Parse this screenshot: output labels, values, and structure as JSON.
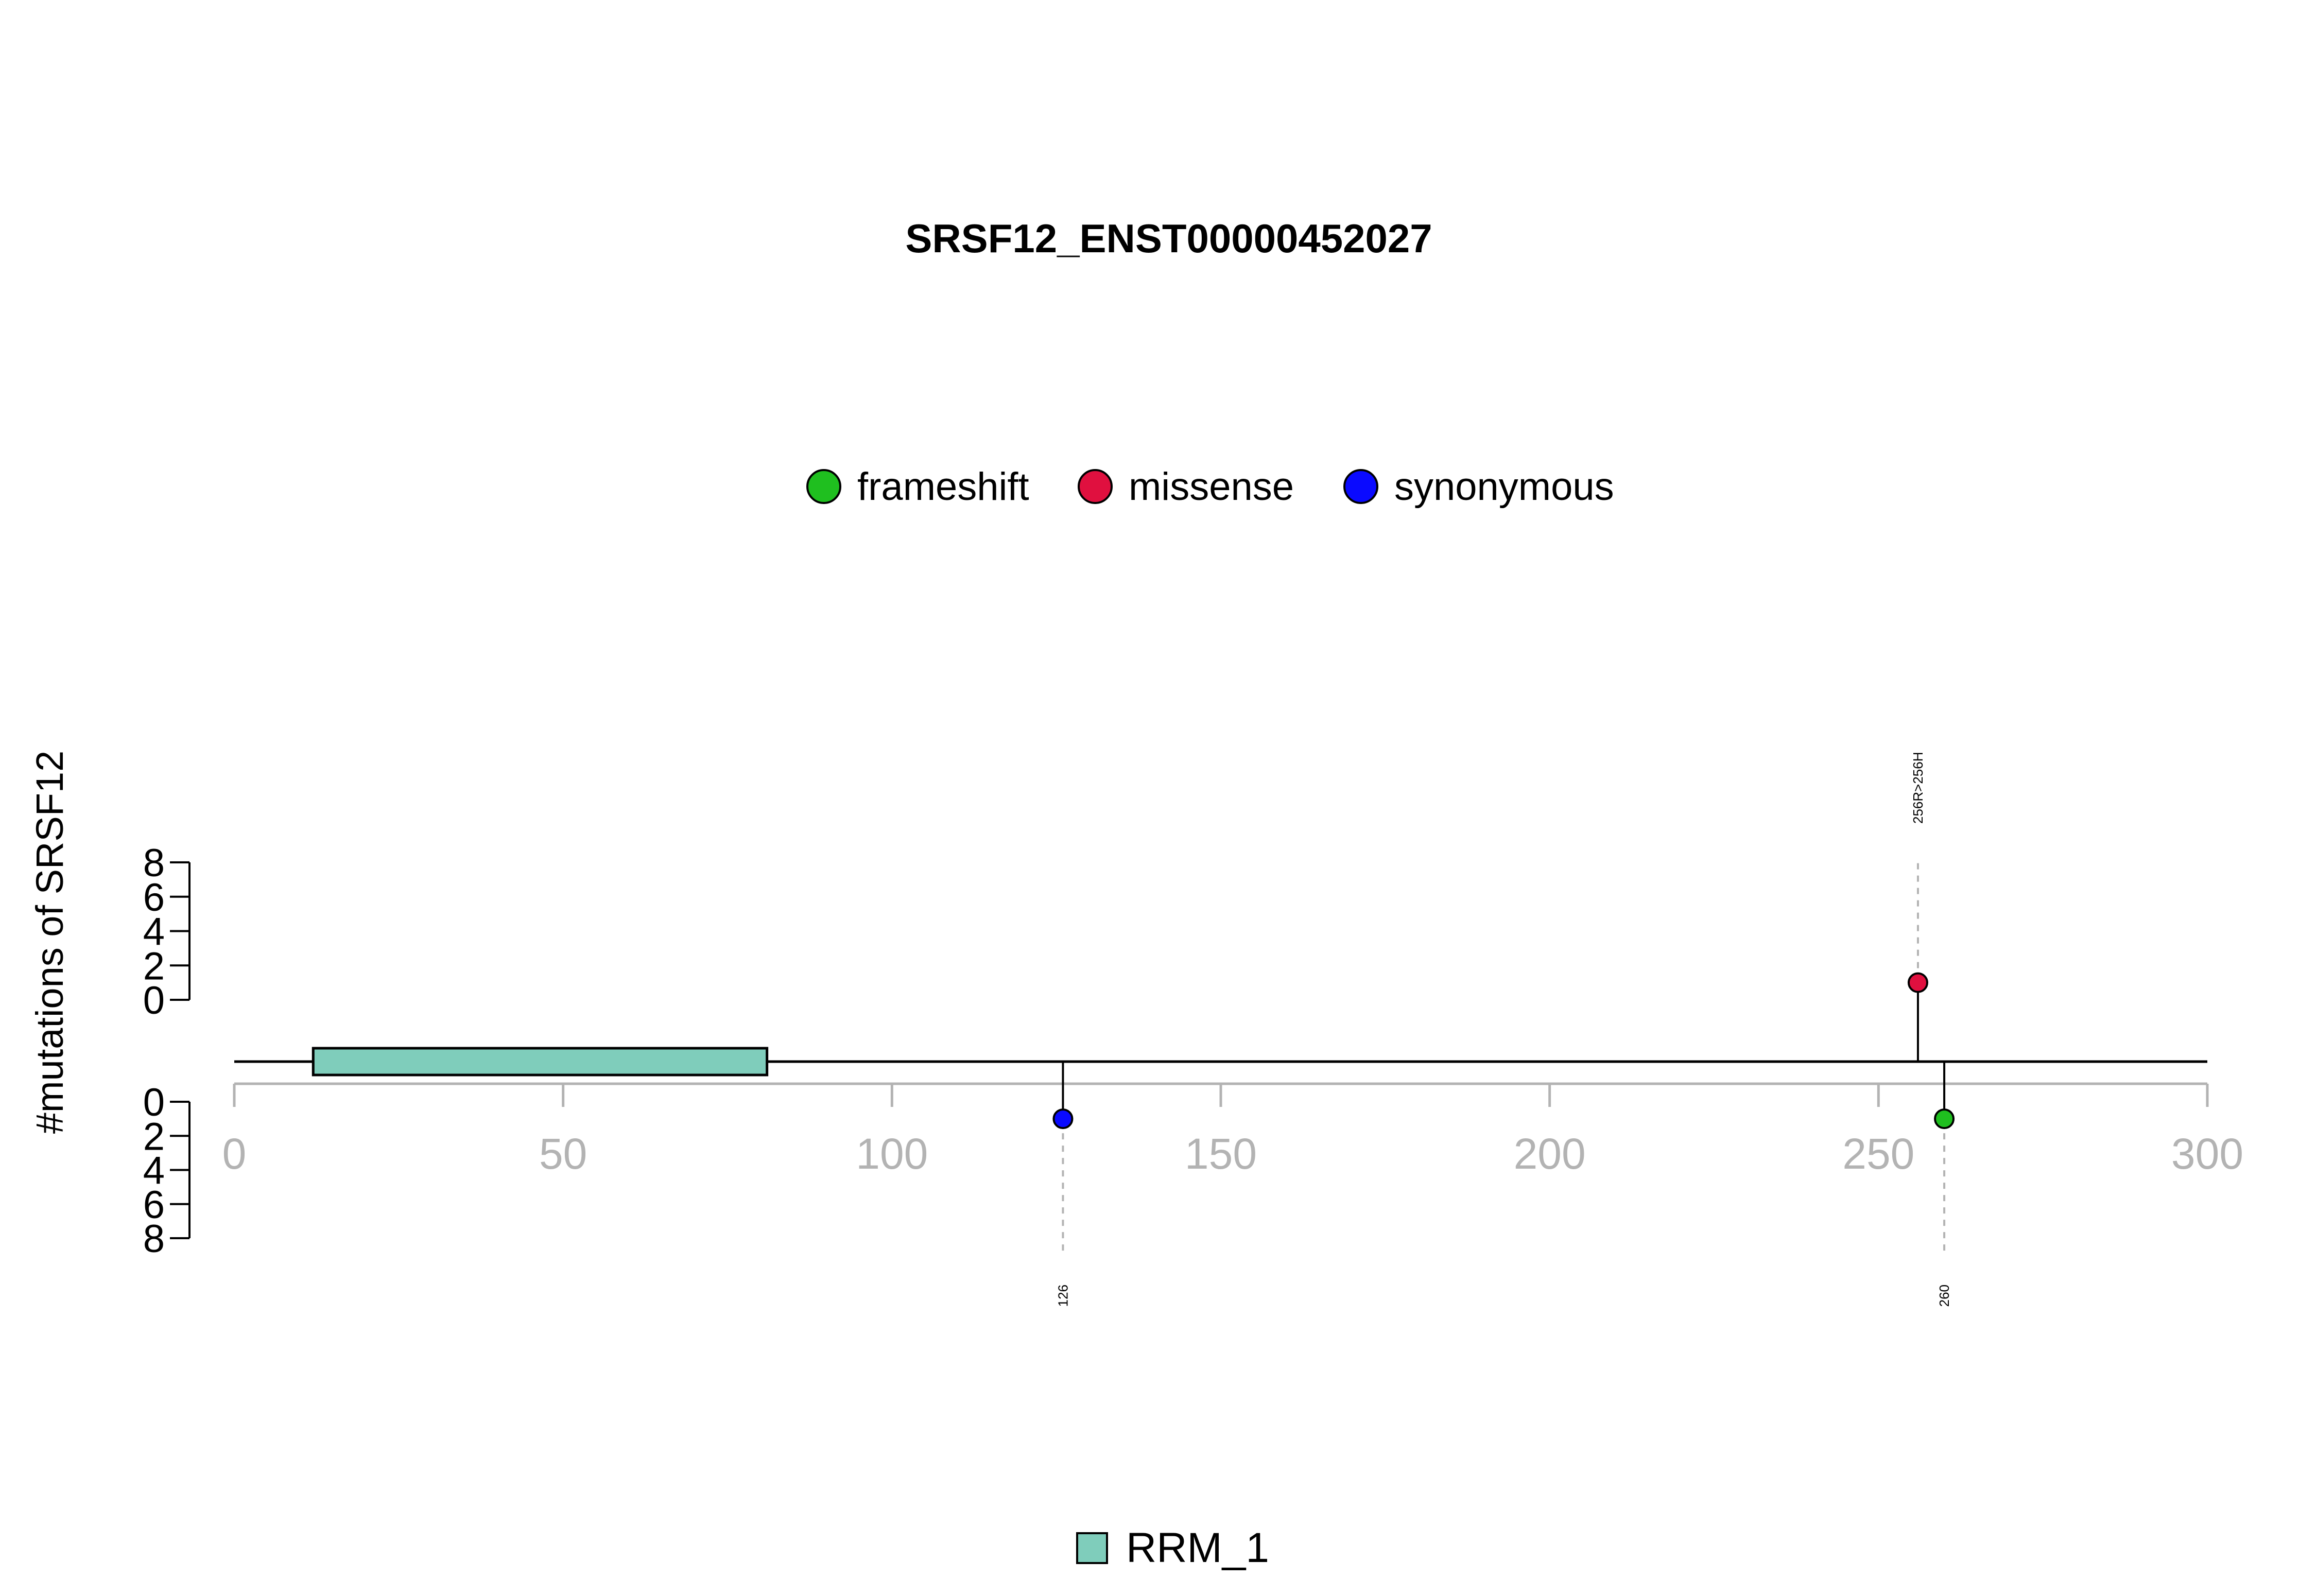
{
  "chart_data": {
    "type": "lollipop",
    "title": "SRSF12_ENST00000452027",
    "ylabel": "#mutations of SRSF12",
    "xlim": [
      0,
      300
    ],
    "x_ticks": [
      0,
      50,
      100,
      150,
      200,
      250,
      300
    ],
    "x_tick_labels": [
      "0",
      "50",
      "100",
      "150",
      "200",
      "250",
      "300"
    ],
    "y_ticks_upper": [
      0,
      2,
      4,
      6,
      8
    ],
    "y_ticks_lower": [
      0,
      2,
      4,
      6,
      8
    ],
    "y_ticks_upper_labels": [
      "0",
      "2",
      "4",
      "6",
      "8"
    ],
    "y_ticks_lower_labels": [
      "0",
      "2",
      "4",
      "6",
      "8"
    ],
    "ylim": [
      0,
      8
    ],
    "protein_length": 300,
    "legend_position": "top-center",
    "legend": [
      {
        "label": "frameshift",
        "color": "#1fbf1f"
      },
      {
        "label": "missense",
        "color": "#e0103f"
      },
      {
        "label": "synonymous",
        "color": "#0a0aff"
      }
    ],
    "domains": [
      {
        "name": "RRM_1",
        "start": 12,
        "end": 81,
        "color": "#7fcdbb"
      }
    ],
    "domain_legend_position": "bottom-center",
    "mutations": [
      {
        "position": 126,
        "count": 1,
        "type": "synonymous",
        "side": "below",
        "label": "126"
      },
      {
        "position": 256,
        "count": 1,
        "type": "missense",
        "side": "above",
        "label": "256R>256H"
      },
      {
        "position": 260,
        "count": 1,
        "type": "frameshift",
        "side": "below",
        "label": "260"
      }
    ]
  }
}
